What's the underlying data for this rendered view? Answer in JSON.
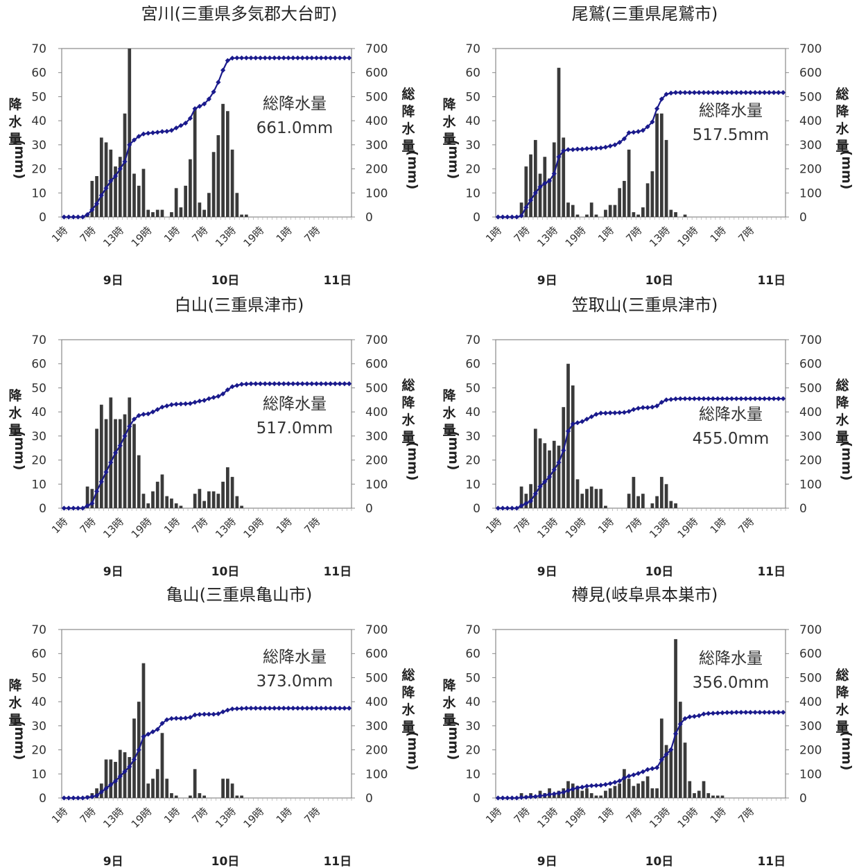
{
  "chart_data": [
    {
      "type": "bar+line",
      "title": "宮川(三重県多気郡大台町)",
      "ylabel_left": "降水量(mm)",
      "ylabel_right": "総降水量(mm)",
      "ylim_left": [
        0,
        70
      ],
      "ylim_right": [
        0,
        700
      ],
      "yticks_left": [
        "0",
        "10",
        "20",
        "30",
        "40",
        "50",
        "60",
        "70"
      ],
      "yticks_right": [
        "0",
        "100",
        "200",
        "300",
        "400",
        "500",
        "600",
        "700"
      ],
      "x_tick_labels": [
        "1時",
        "7時",
        "13時",
        "19時",
        "1時",
        "7時",
        "13時",
        "19時",
        "1時",
        "7時"
      ],
      "day_labels": [
        "9日",
        "10日",
        "11日"
      ],
      "annotation": [
        "総降水量",
        "661.0mm"
      ],
      "hourly": [
        0,
        0,
        0,
        0,
        0,
        1,
        15,
        17,
        33,
        31,
        28,
        21,
        25,
        43,
        70,
        18,
        13,
        20,
        3,
        2,
        3,
        3,
        0,
        2,
        12,
        4,
        13,
        24,
        45,
        6,
        3,
        10,
        27,
        34,
        47,
        44,
        28,
        10,
        1,
        1,
        0,
        0,
        0,
        0,
        0,
        0,
        0,
        0,
        0,
        0,
        0,
        0,
        0,
        0,
        0,
        0,
        0,
        0,
        0,
        0,
        0,
        0
      ],
      "cumulative": [
        0,
        0,
        0,
        0,
        0,
        10,
        30,
        55,
        90,
        120,
        150,
        170,
        200,
        230,
        300,
        320,
        335,
        345,
        348,
        350,
        352,
        355,
        356,
        360,
        370,
        380,
        390,
        410,
        450,
        460,
        470,
        490,
        520,
        560,
        610,
        650,
        660,
        661,
        661,
        661,
        661,
        661,
        661,
        661,
        661,
        661,
        661,
        661,
        661,
        661,
        661,
        661,
        661,
        661,
        661,
        661,
        661,
        661,
        661,
        661,
        661,
        661
      ]
    },
    {
      "type": "bar+line",
      "title": "尾鷲(三重県尾鷲市)",
      "ylabel_left": "降水量(mm)",
      "ylabel_right": "総降水量(mm)",
      "ylim_left": [
        0,
        70
      ],
      "ylim_right": [
        0,
        700
      ],
      "yticks_left": [
        "0",
        "10",
        "20",
        "30",
        "40",
        "50",
        "60",
        "70"
      ],
      "yticks_right": [
        "0",
        "100",
        "200",
        "300",
        "400",
        "500",
        "600",
        "700"
      ],
      "x_tick_labels": [
        "1時",
        "7時",
        "13時",
        "19時",
        "1時",
        "7時",
        "13時",
        "19時",
        "1時",
        "7時"
      ],
      "day_labels": [
        "9日",
        "10日",
        "11日"
      ],
      "annotation": [
        "総降水量",
        "517.5mm"
      ],
      "hourly": [
        0,
        0,
        0,
        0,
        0,
        6,
        21,
        26,
        32,
        18,
        25,
        16,
        31,
        62,
        33,
        6,
        5,
        1,
        0,
        1,
        6,
        1,
        0,
        3,
        5,
        5,
        12,
        15,
        28,
        2,
        1,
        4,
        14,
        19,
        43,
        43,
        32,
        3,
        2,
        0,
        1,
        0,
        0,
        0,
        0,
        0,
        0,
        0,
        0,
        0,
        0,
        0,
        0,
        0,
        0,
        0,
        0,
        0,
        0,
        0,
        0,
        0
      ],
      "cumulative": [
        0,
        0,
        0,
        0,
        0,
        5,
        40,
        70,
        100,
        125,
        140,
        150,
        180,
        250,
        275,
        280,
        280,
        282,
        282,
        284,
        285,
        286,
        287,
        290,
        295,
        300,
        310,
        325,
        350,
        352,
        355,
        360,
        375,
        395,
        450,
        490,
        510,
        515,
        517,
        517,
        517,
        517,
        517,
        517,
        517,
        517,
        517,
        517,
        517,
        517,
        517,
        517,
        517,
        517,
        517,
        517,
        517,
        517,
        517,
        517,
        517,
        517
      ]
    },
    {
      "type": "bar+line",
      "title": "白山(三重県津市)",
      "ylabel_left": "降水量(mm)",
      "ylabel_right": "総降水量(mm)",
      "ylim_left": [
        0,
        70
      ],
      "ylim_right": [
        0,
        700
      ],
      "yticks_left": [
        "0",
        "10",
        "20",
        "30",
        "40",
        "50",
        "60",
        "70"
      ],
      "yticks_right": [
        "0",
        "100",
        "200",
        "300",
        "400",
        "500",
        "600",
        "700"
      ],
      "x_tick_labels": [
        "1時",
        "7時",
        "13時",
        "19時",
        "1時",
        "7時",
        "13時",
        "19時",
        "1時",
        "7時"
      ],
      "day_labels": [
        "9日",
        "10日",
        "11日"
      ],
      "annotation": [
        "総降水量",
        "517.0mm"
      ],
      "hourly": [
        0,
        0,
        0,
        0,
        0,
        9,
        8,
        33,
        43,
        37,
        46,
        37,
        37,
        39,
        46,
        35,
        22,
        6,
        2,
        7,
        11,
        14,
        5,
        4,
        2,
        1,
        0,
        0,
        6,
        8,
        3,
        7,
        7,
        6,
        11,
        17,
        13,
        5,
        1,
        0,
        0,
        0,
        0,
        0,
        0,
        0,
        0,
        0,
        0,
        0,
        0,
        0,
        0,
        0,
        0,
        0,
        0,
        0,
        0,
        0,
        0,
        0
      ],
      "cumulative": [
        0,
        0,
        0,
        0,
        0,
        10,
        20,
        70,
        110,
        150,
        190,
        230,
        260,
        300,
        340,
        370,
        385,
        390,
        392,
        400,
        410,
        420,
        425,
        430,
        432,
        433,
        434,
        435,
        440,
        445,
        448,
        455,
        460,
        465,
        475,
        492,
        505,
        510,
        515,
        516,
        517,
        517,
        517,
        517,
        517,
        517,
        517,
        517,
        517,
        517,
        517,
        517,
        517,
        517,
        517,
        517,
        517,
        517,
        517,
        517,
        517,
        517
      ]
    },
    {
      "type": "bar+line",
      "title": "笠取山(三重県津市)",
      "ylabel_left": "降水量(mm)",
      "ylabel_right": "総降水量(mm)",
      "ylim_left": [
        0,
        70
      ],
      "ylim_right": [
        0,
        700
      ],
      "yticks_left": [
        "0",
        "10",
        "20",
        "30",
        "40",
        "50",
        "60",
        "70"
      ],
      "yticks_right": [
        "0",
        "100",
        "200",
        "300",
        "400",
        "500",
        "600",
        "700"
      ],
      "x_tick_labels": [
        "1時",
        "7時",
        "13時",
        "19時",
        "1時",
        "7時",
        "13時",
        "19時",
        "1時",
        "7時"
      ],
      "day_labels": [
        "9日",
        "10日",
        "11日"
      ],
      "annotation": [
        "総降水量",
        "455.0mm"
      ],
      "hourly": [
        0,
        0,
        0,
        0,
        0,
        9,
        6,
        10,
        33,
        29,
        27,
        24,
        28,
        26,
        42,
        60,
        51,
        12,
        6,
        8,
        9,
        8,
        8,
        1,
        0,
        0,
        0,
        0,
        6,
        13,
        5,
        6,
        0,
        2,
        5,
        13,
        10,
        3,
        2,
        0,
        0,
        0,
        0,
        0,
        0,
        0,
        0,
        0,
        0,
        0,
        0,
        0,
        0,
        0,
        0,
        0,
        0,
        0,
        0,
        0,
        0,
        0
      ],
      "cumulative": [
        0,
        0,
        0,
        0,
        0,
        10,
        20,
        30,
        60,
        90,
        110,
        130,
        160,
        190,
        240,
        320,
        350,
        355,
        360,
        370,
        380,
        390,
        395,
        395,
        396,
        396,
        397,
        398,
        402,
        410,
        415,
        418,
        418,
        420,
        425,
        440,
        450,
        452,
        454,
        455,
        455,
        455,
        455,
        455,
        455,
        455,
        455,
        455,
        455,
        455,
        455,
        455,
        455,
        455,
        455,
        455,
        455,
        455,
        455,
        455,
        455,
        455
      ]
    },
    {
      "type": "bar+line",
      "title": "亀山(三重県亀山市)",
      "ylabel_left": "降水量(mm)",
      "ylabel_right": "総降水量(mm)",
      "ylim_left": [
        0,
        70
      ],
      "ylim_right": [
        0,
        700
      ],
      "yticks_left": [
        "0",
        "10",
        "20",
        "30",
        "40",
        "50",
        "60",
        "70"
      ],
      "yticks_right": [
        "0",
        "100",
        "200",
        "300",
        "400",
        "500",
        "600",
        "700"
      ],
      "x_tick_labels": [
        "1時",
        "7時",
        "13時",
        "19時",
        "1時",
        "7時",
        "13時",
        "19時",
        "1時",
        "7時"
      ],
      "day_labels": [
        "9日",
        "10日",
        "11日"
      ],
      "annotation": [
        "総降水量",
        "373.0mm"
      ],
      "hourly": [
        0,
        0,
        0,
        0,
        0,
        1,
        2,
        4,
        6,
        16,
        16,
        15,
        20,
        19,
        17,
        33,
        40,
        56,
        6,
        8,
        12,
        27,
        8,
        2,
        1,
        0,
        0,
        1,
        12,
        2,
        1,
        0,
        0,
        0,
        8,
        8,
        6,
        1,
        1,
        0,
        0,
        0,
        0,
        0,
        0,
        0,
        0,
        0,
        0,
        0,
        0,
        0,
        0,
        0,
        0,
        0,
        0,
        0,
        0,
        0,
        0,
        0
      ],
      "cumulative": [
        0,
        0,
        0,
        0,
        0,
        2,
        5,
        10,
        25,
        40,
        55,
        70,
        90,
        110,
        130,
        160,
        200,
        255,
        265,
        275,
        285,
        310,
        325,
        330,
        331,
        331,
        332,
        335,
        345,
        347,
        348,
        348,
        348,
        350,
        358,
        365,
        370,
        371,
        372,
        373,
        373,
        373,
        373,
        373,
        373,
        373,
        373,
        373,
        373,
        373,
        373,
        373,
        373,
        373,
        373,
        373,
        373,
        373,
        373,
        373,
        373,
        373
      ]
    },
    {
      "type": "bar+line",
      "title": "樽見(岐阜県本巣市)",
      "ylabel_left": "降水量(mm)",
      "ylabel_right": "総降水量(mm)",
      "ylim_left": [
        0,
        70
      ],
      "ylim_right": [
        0,
        700
      ],
      "yticks_left": [
        "0",
        "10",
        "20",
        "30",
        "40",
        "50",
        "60",
        "70"
      ],
      "yticks_right": [
        "0",
        "100",
        "200",
        "300",
        "400",
        "500",
        "600",
        "700"
      ],
      "x_tick_labels": [
        "1時",
        "7時",
        "13時",
        "19時",
        "1時",
        "7時",
        "13時",
        "19時",
        "1時",
        "7時"
      ],
      "day_labels": [
        "9日",
        "10日",
        "11日"
      ],
      "annotation": [
        "総降水量",
        "356.0mm"
      ],
      "hourly": [
        0,
        0,
        0,
        0,
        0,
        2,
        1,
        2,
        1,
        3,
        2,
        4,
        2,
        3,
        4,
        7,
        6,
        5,
        3,
        4,
        2,
        1,
        1,
        3,
        4,
        5,
        6,
        12,
        8,
        5,
        6,
        7,
        9,
        4,
        4,
        33,
        22,
        20,
        66,
        40,
        23,
        7,
        2,
        3,
        7,
        2,
        1,
        1,
        1,
        0,
        0,
        0,
        0,
        0,
        0,
        0,
        0,
        0,
        0,
        0,
        0,
        0
      ],
      "cumulative": [
        0,
        0,
        0,
        0,
        0,
        2,
        3,
        5,
        6,
        9,
        11,
        15,
        17,
        20,
        24,
        31,
        37,
        42,
        45,
        49,
        51,
        52,
        53,
        56,
        60,
        65,
        71,
        83,
        91,
        96,
        102,
        109,
        118,
        122,
        126,
        159,
        181,
        201,
        267,
        307,
        330,
        337,
        339,
        342,
        349,
        351,
        352,
        353,
        354,
        355,
        355,
        356,
        356,
        356,
        356,
        356,
        356,
        356,
        356,
        356,
        356,
        356
      ]
    }
  ]
}
